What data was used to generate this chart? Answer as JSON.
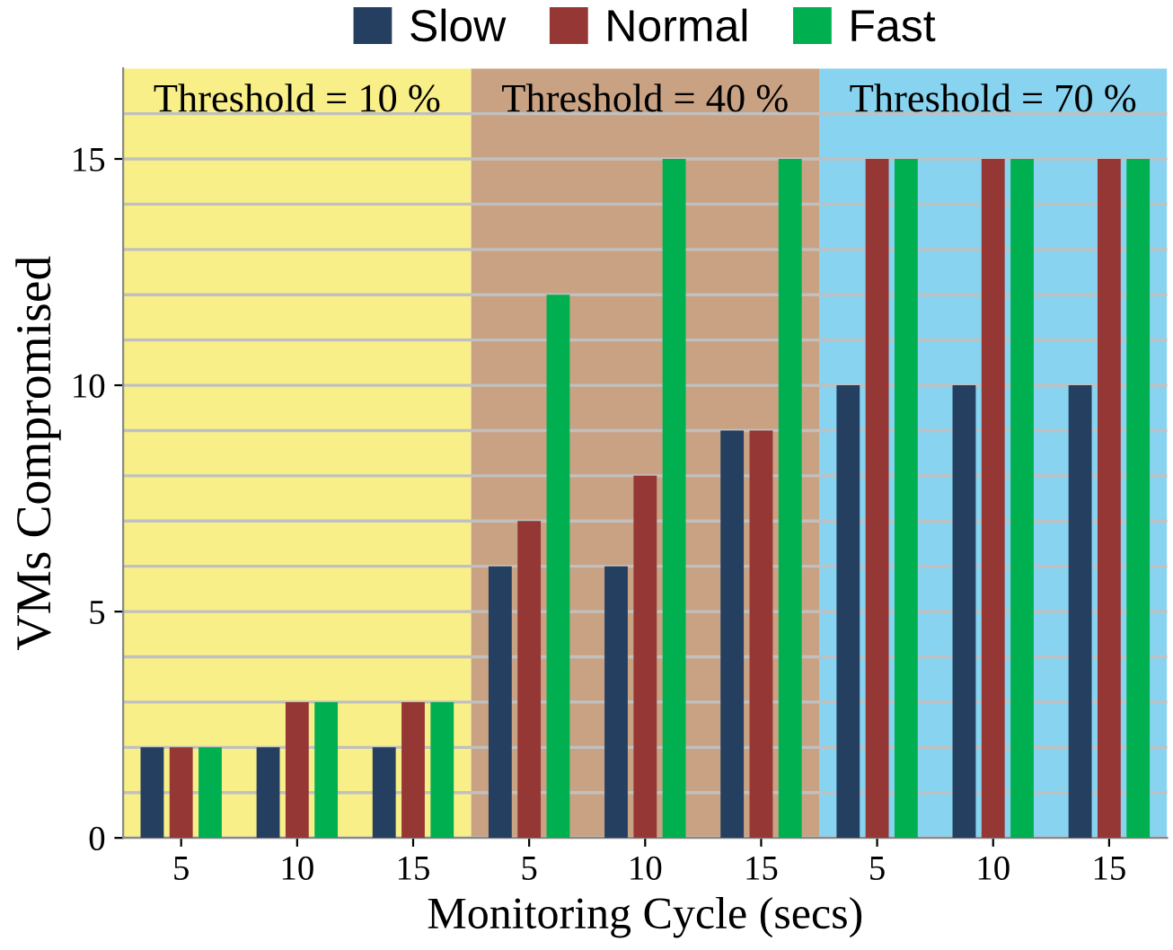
{
  "chart_data": {
    "type": "bar",
    "xlabel": "Monitoring Cycle (secs)",
    "ylabel": "VMs Compromised",
    "categories": [
      "5",
      "10",
      "15",
      "5",
      "10",
      "15",
      "5",
      "10",
      "15"
    ],
    "series": [
      {
        "name": "Slow",
        "color": "#243f60",
        "values": [
          2,
          2,
          2,
          6,
          6,
          9,
          10,
          10,
          10
        ]
      },
      {
        "name": "Normal",
        "color": "#953735",
        "values": [
          2,
          3,
          3,
          7,
          8,
          9,
          15,
          15,
          15
        ]
      },
      {
        "name": "Fast",
        "color": "#00b050",
        "values": [
          2,
          3,
          3,
          12,
          15,
          15,
          15,
          15,
          15
        ]
      }
    ],
    "ylim": [
      0,
      17
    ],
    "yticks": [
      0,
      {
        "value": 1,
        "label": null
      },
      {
        "value": 2,
        "label": null
      },
      {
        "value": 3,
        "label": null
      },
      {
        "value": 4,
        "label": null
      },
      5,
      {
        "value": 6,
        "label": null
      },
      {
        "value": 7,
        "label": null
      },
      {
        "value": 8,
        "label": null
      },
      {
        "value": 9,
        "label": null
      },
      10,
      {
        "value": 11,
        "label": null
      },
      {
        "value": 12,
        "label": null
      },
      {
        "value": 13,
        "label": null
      },
      {
        "value": 14,
        "label": null
      },
      15,
      {
        "value": 16,
        "label": null
      }
    ],
    "annotations": [
      "Threshold = 10 %",
      "Threshold = 40 %",
      "Threshold = 70 %"
    ],
    "grid": "y",
    "legend": "top"
  }
}
